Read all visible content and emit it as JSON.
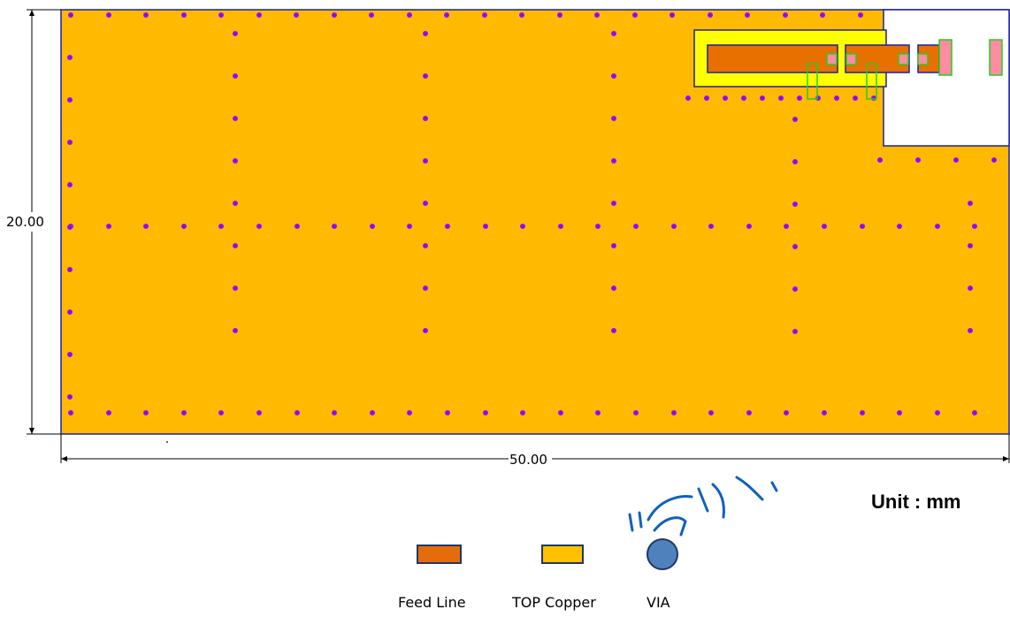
{
  "dimensions": {
    "height_label": "20.00",
    "width_label": "50.00"
  },
  "unit_label": "Unit : mm",
  "legend": [
    {
      "name": "Feed Line",
      "color": "#E46C0A"
    },
    {
      "name": "TOP Copper",
      "color": "#FFC000"
    },
    {
      "name": "VIA",
      "color": "#4F81BD"
    }
  ],
  "colors": {
    "board": "#FFBA00",
    "board_outline": "#1F1FA0",
    "via": "#B000FF",
    "via_center": "#3030FF",
    "feed_line": "#E87000",
    "feed_frame": "#FFFF00",
    "component_pad": "#FF8CA0",
    "component_outline": "#20D020",
    "cutout": "#FFFFFF",
    "sketch_stroke": "#1060C0"
  }
}
